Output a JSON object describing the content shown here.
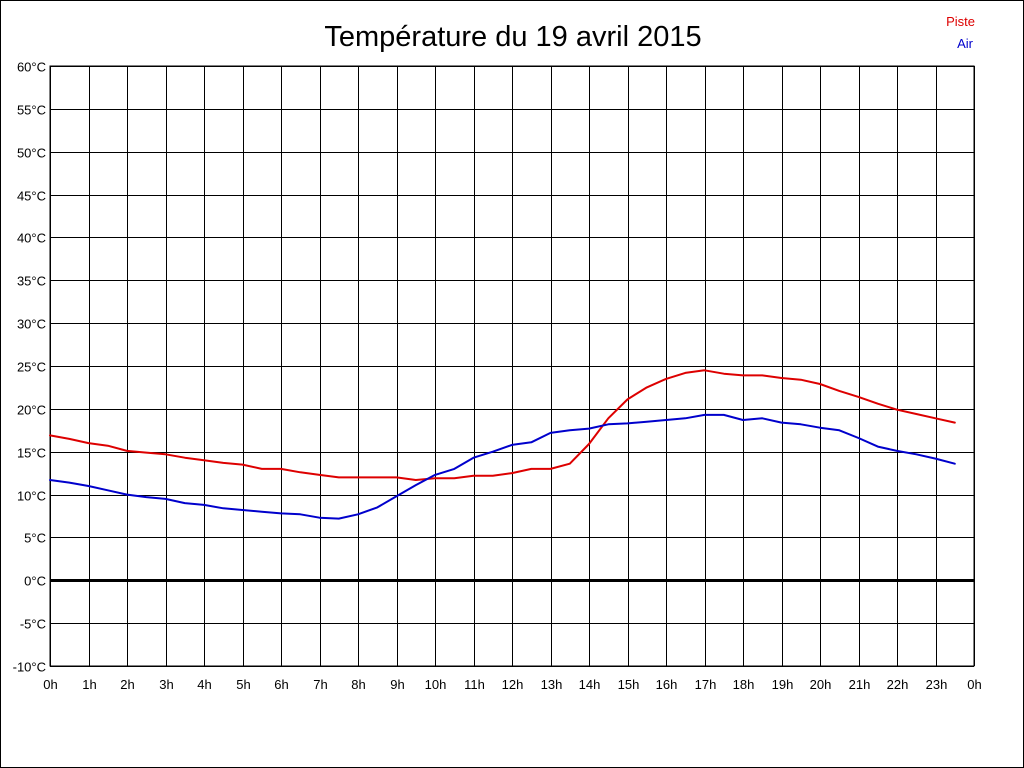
{
  "chart_data": {
    "type": "line",
    "title": "Température du 19 avril 2015",
    "xlabel": "",
    "ylabel": "",
    "x_tick_labels": [
      "0h",
      "1h",
      "2h",
      "3h",
      "4h",
      "5h",
      "6h",
      "7h",
      "8h",
      "9h",
      "10h",
      "11h",
      "12h",
      "13h",
      "14h",
      "15h",
      "16h",
      "17h",
      "18h",
      "19h",
      "20h",
      "21h",
      "22h",
      "23h",
      "0h"
    ],
    "y_tick_labels": [
      "-10°C",
      "-5°C",
      "0°C",
      "5°C",
      "10°C",
      "15°C",
      "20°C",
      "25°C",
      "30°C",
      "35°C",
      "40°C",
      "45°C",
      "50°C",
      "55°C",
      "60°C"
    ],
    "xlim": [
      0,
      24
    ],
    "ylim": [
      -10,
      60
    ],
    "grid": true,
    "legend_position": "top-right",
    "zero_line": 0,
    "series": [
      {
        "name": "Piste",
        "color": "#dd0000",
        "x": [
          0,
          0.5,
          1,
          1.5,
          2,
          2.5,
          3,
          3.5,
          4,
          4.5,
          5,
          5.5,
          6,
          6.5,
          7,
          7.5,
          8,
          8.5,
          9,
          9.5,
          10,
          10.5,
          11,
          11.5,
          12,
          12.5,
          13,
          13.5,
          14,
          14.5,
          15,
          15.5,
          16,
          16.5,
          17,
          17.5,
          18,
          18.5,
          19,
          19.5,
          20,
          20.5,
          21,
          21.5,
          22,
          22.5,
          23,
          23.5
        ],
        "y": [
          16.9,
          16.5,
          16.0,
          15.7,
          15.1,
          14.9,
          14.7,
          14.3,
          14.0,
          13.7,
          13.5,
          13.0,
          13.0,
          12.6,
          12.3,
          12.0,
          12.0,
          12.0,
          12.0,
          11.7,
          11.9,
          11.9,
          12.2,
          12.2,
          12.5,
          13.0,
          13.0,
          13.6,
          15.9,
          18.9,
          21.1,
          22.5,
          23.5,
          24.2,
          24.5,
          24.1,
          23.9,
          23.9,
          23.6,
          23.4,
          22.9,
          22.1,
          21.4,
          20.6,
          19.9,
          19.4,
          18.9,
          18.4
        ]
      },
      {
        "name": "Air",
        "color": "#0000cc",
        "x": [
          0,
          0.5,
          1,
          1.5,
          2,
          2.5,
          3,
          3.5,
          4,
          4.5,
          5,
          5.5,
          6,
          6.5,
          7,
          7.5,
          8,
          8.5,
          9,
          9.5,
          10,
          10.5,
          11,
          11.5,
          12,
          12.5,
          13,
          13.5,
          14,
          14.5,
          15,
          15.5,
          16,
          16.5,
          17,
          17.5,
          18,
          18.5,
          19,
          19.5,
          20,
          20.5,
          21,
          21.5,
          22,
          22.5,
          23,
          23.5
        ],
        "y": [
          11.7,
          11.4,
          11.0,
          10.5,
          10.0,
          9.7,
          9.5,
          9.0,
          8.8,
          8.4,
          8.2,
          8.0,
          7.8,
          7.7,
          7.3,
          7.2,
          7.7,
          8.5,
          9.8,
          11.1,
          12.3,
          13.0,
          14.3,
          15.0,
          15.8,
          16.1,
          17.2,
          17.5,
          17.7,
          18.2,
          18.3,
          18.5,
          18.7,
          18.9,
          19.3,
          19.3,
          18.7,
          18.9,
          18.4,
          18.2,
          17.8,
          17.5,
          16.6,
          15.6,
          15.1,
          14.7,
          14.2,
          13.6
        ]
      }
    ]
  }
}
